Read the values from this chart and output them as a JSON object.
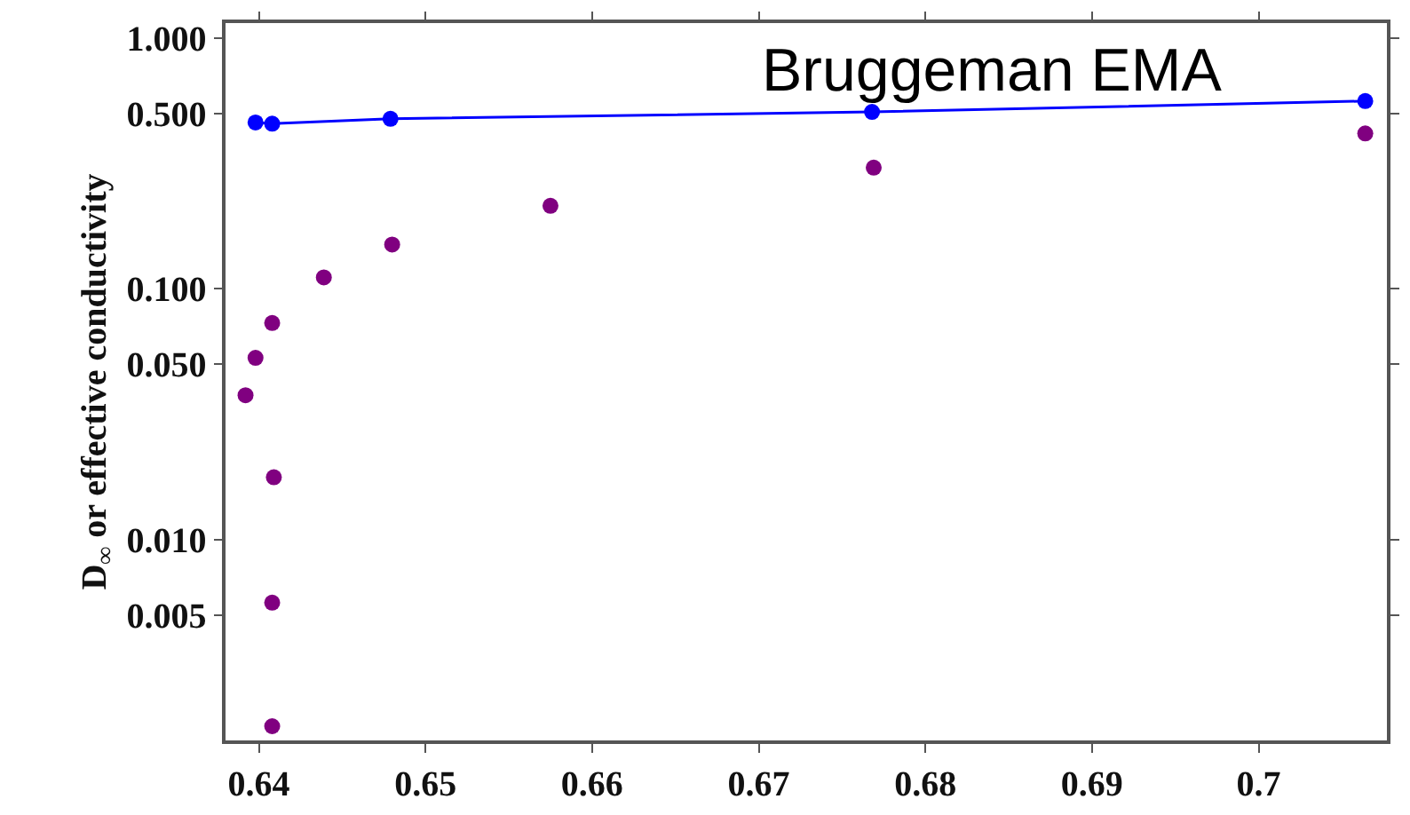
{
  "chart_data": {
    "type": "scatter",
    "ylabel": "D$_{∞}$ or effective conductivity",
    "log": "y",
    "legend": false,
    "marker": "circle",
    "xlim": [
      0.638,
      0.7077
    ],
    "xticks": [
      0.64,
      0.65,
      0.66,
      0.67,
      0.68,
      0.69,
      0.7
    ],
    "ylim": [
      0.00158,
      1.146
    ],
    "yticks": [
      {
        "value": 0.005,
        "label": "0.005"
      },
      {
        "value": 0.01,
        "label": "0.010"
      },
      {
        "value": 0.05,
        "label": "0.050"
      },
      {
        "value": 0.1,
        "label": "0.100"
      },
      {
        "value": 0.5,
        "label": "0.500"
      },
      {
        "value": 1,
        "label": "1.000"
      }
    ],
    "series": [
      {
        "name": "Bruggeman EMA",
        "type": "line",
        "color": "#0000ff",
        "x": [
          0.6398,
          0.6408,
          0.6479,
          0.6768,
          0.7064
        ],
        "values": [
          0.46,
          0.455,
          0.476,
          0.507,
          0.56
        ]
      },
      {
        "color": "#800080",
        "x": [
          0.6392,
          0.6398,
          0.6408,
          0.6439,
          0.648,
          0.6575,
          0.6769,
          0.7064,
          0.6409,
          0.6408,
          0.6408
        ],
        "values": [
          0.0376,
          0.053,
          0.073,
          0.111,
          0.15,
          0.214,
          0.304,
          0.416,
          0.0177,
          0.0056,
          0.0018
        ]
      }
    ]
  }
}
